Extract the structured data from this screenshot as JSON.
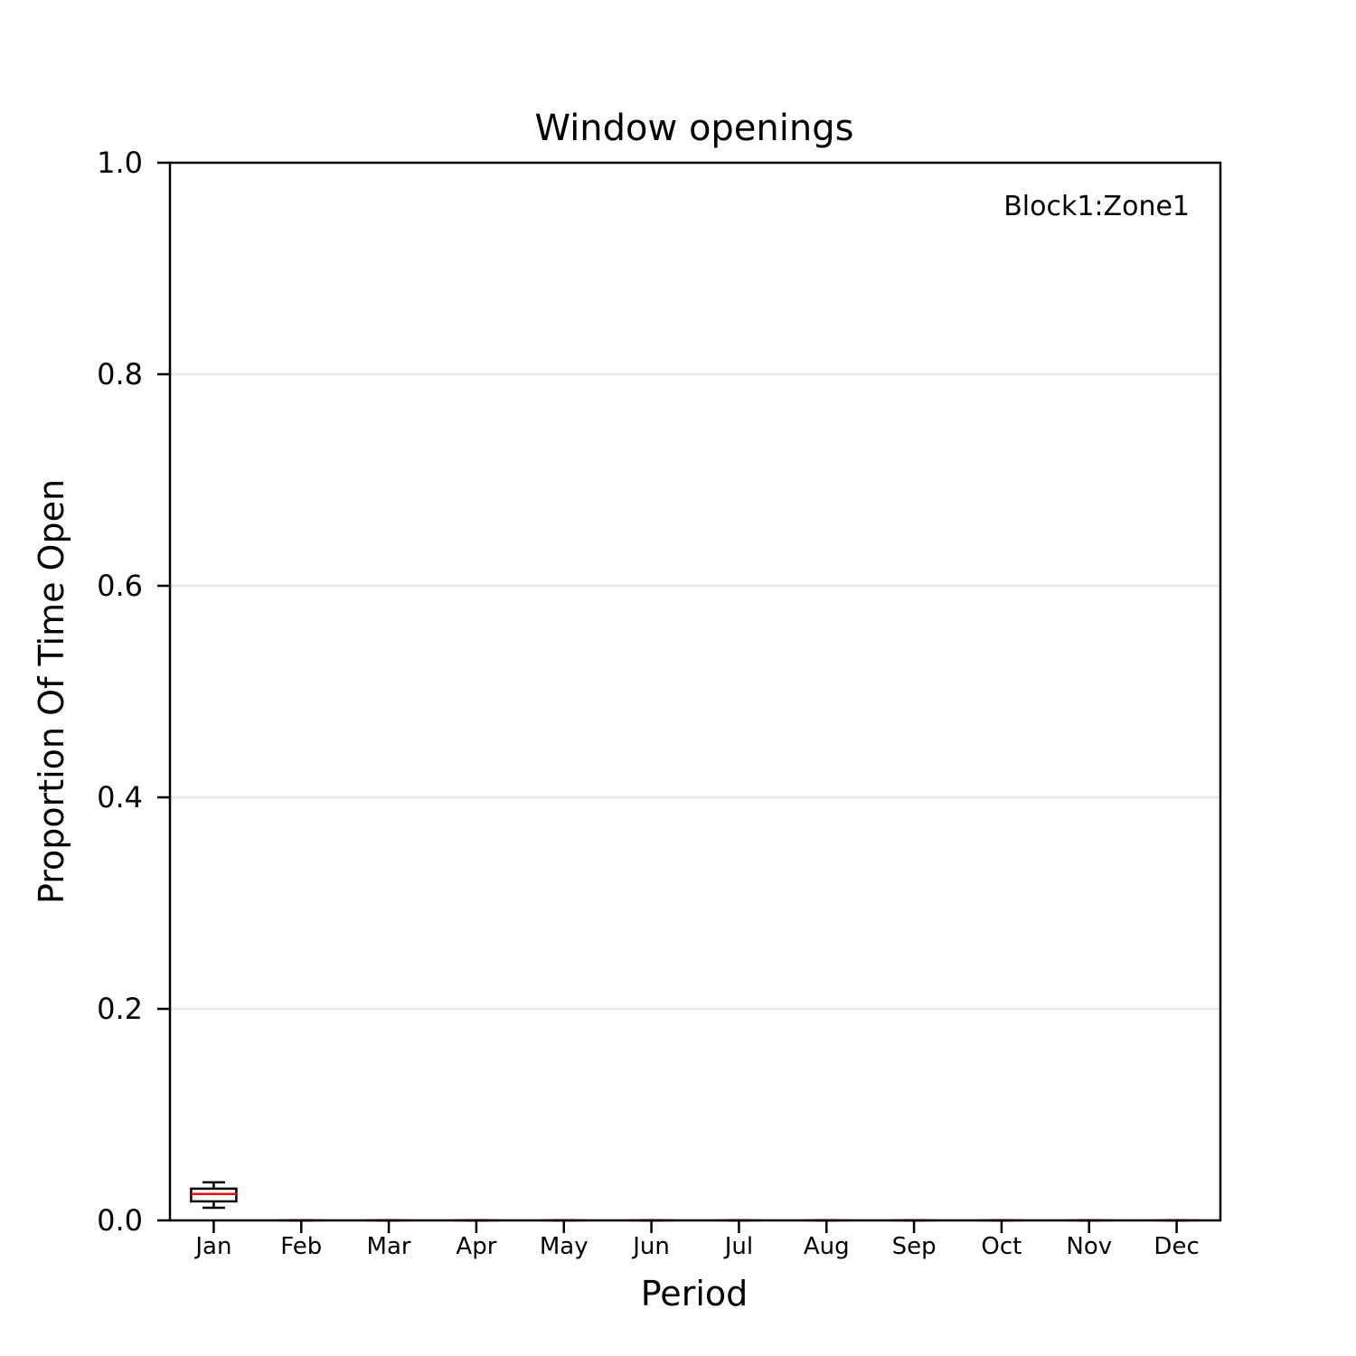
{
  "chart_data": {
    "type": "box",
    "title": "Window openings",
    "xlabel": "Period",
    "ylabel": "Proportion Of Time Open",
    "annotation": "Block1:Zone1",
    "ylim": [
      0,
      1
    ],
    "yticks": [
      "0.0",
      "0.2",
      "0.4",
      "0.6",
      "0.8",
      "1.0"
    ],
    "ytick_values": [
      0,
      0.2,
      0.4,
      0.6,
      0.8,
      1.0
    ],
    "grid": "horizontal",
    "categories": [
      "Jan",
      "Feb",
      "Mar",
      "Apr",
      "May",
      "Jun",
      "Jul",
      "Aug",
      "Sep",
      "Oct",
      "Nov",
      "Dec"
    ],
    "boxes": [
      {
        "whisker_low": 0.012,
        "q1": 0.018,
        "median": 0.025,
        "q3": 0.03,
        "whisker_high": 0.036
      },
      {
        "whisker_low": 0,
        "q1": 0,
        "median": 0,
        "q3": 0,
        "whisker_high": 0
      },
      {
        "whisker_low": 0,
        "q1": 0,
        "median": 0,
        "q3": 0,
        "whisker_high": 0
      },
      {
        "whisker_low": 0,
        "q1": 0,
        "median": 0,
        "q3": 0,
        "whisker_high": 0
      },
      {
        "whisker_low": 0,
        "q1": 0,
        "median": 0,
        "q3": 0,
        "whisker_high": 0
      },
      {
        "whisker_low": 0,
        "q1": 0,
        "median": 0,
        "q3": 0,
        "whisker_high": 0
      },
      {
        "whisker_low": 0,
        "q1": 0,
        "median": 0,
        "q3": 0,
        "whisker_high": 0
      },
      {
        "whisker_low": 0,
        "q1": 0,
        "median": 0,
        "q3": 0,
        "whisker_high": 0
      },
      {
        "whisker_low": 0,
        "q1": 0,
        "median": 0,
        "q3": 0,
        "whisker_high": 0
      },
      {
        "whisker_low": 0,
        "q1": 0,
        "median": 0,
        "q3": 0,
        "whisker_high": 0
      },
      {
        "whisker_low": 0,
        "q1": 0,
        "median": 0,
        "q3": 0,
        "whisker_high": 0
      },
      {
        "whisker_low": 0,
        "q1": 0,
        "median": 0,
        "q3": 0,
        "whisker_high": 0
      }
    ],
    "colors": {
      "box": "#000000",
      "median": "#ff0000",
      "grid": "#e8e8e8"
    }
  }
}
